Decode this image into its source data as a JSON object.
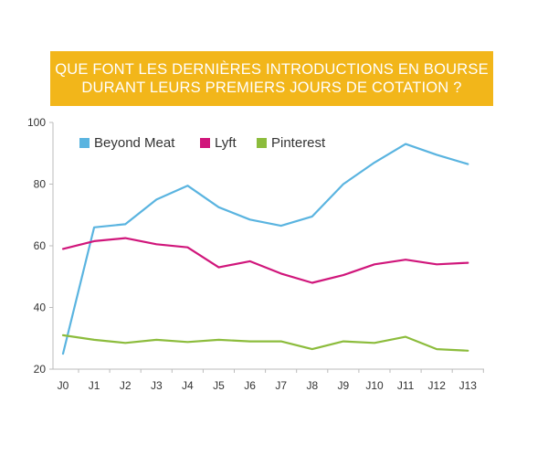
{
  "title": {
    "line1": "QUE FONT LES DERNIÈRES INTRODUCTIONS EN BOURSE",
    "line2": "DURANT LEURS PREMIERS JOURS DE COTATION ?"
  },
  "colors": {
    "banner": "#f2b61a",
    "beyond_meat": "#5ab4e0",
    "lyft": "#d0167b",
    "pinterest": "#8cbc3c",
    "axis": "#bbbbbb"
  },
  "chart_data": {
    "type": "line",
    "categories": [
      "J0",
      "J1",
      "J2",
      "J3",
      "J4",
      "J5",
      "J6",
      "J7",
      "J8",
      "J9",
      "J10",
      "J11",
      "J12",
      "J13"
    ],
    "ylim": [
      20,
      100
    ],
    "yticks": [
      20,
      40,
      60,
      80,
      100
    ],
    "grid": false,
    "legend_position": "top-left",
    "series": [
      {
        "name": "Beyond Meat",
        "color": "#5ab4e0",
        "values": [
          25,
          66,
          67,
          75,
          79.5,
          72.5,
          68.5,
          66.5,
          69.5,
          80,
          87,
          93,
          89.5,
          86.5
        ]
      },
      {
        "name": "Lyft",
        "color": "#d0167b",
        "values": [
          59,
          61.5,
          62.5,
          60.5,
          59.5,
          53,
          55,
          51,
          48,
          50.5,
          54,
          55.5,
          54,
          54.5
        ]
      },
      {
        "name": "Pinterest",
        "color": "#8cbc3c",
        "values": [
          31,
          29.5,
          28.5,
          29.5,
          28.8,
          29.5,
          29,
          29,
          26.5,
          29,
          28.5,
          30.5,
          26.5,
          26
        ]
      }
    ]
  }
}
